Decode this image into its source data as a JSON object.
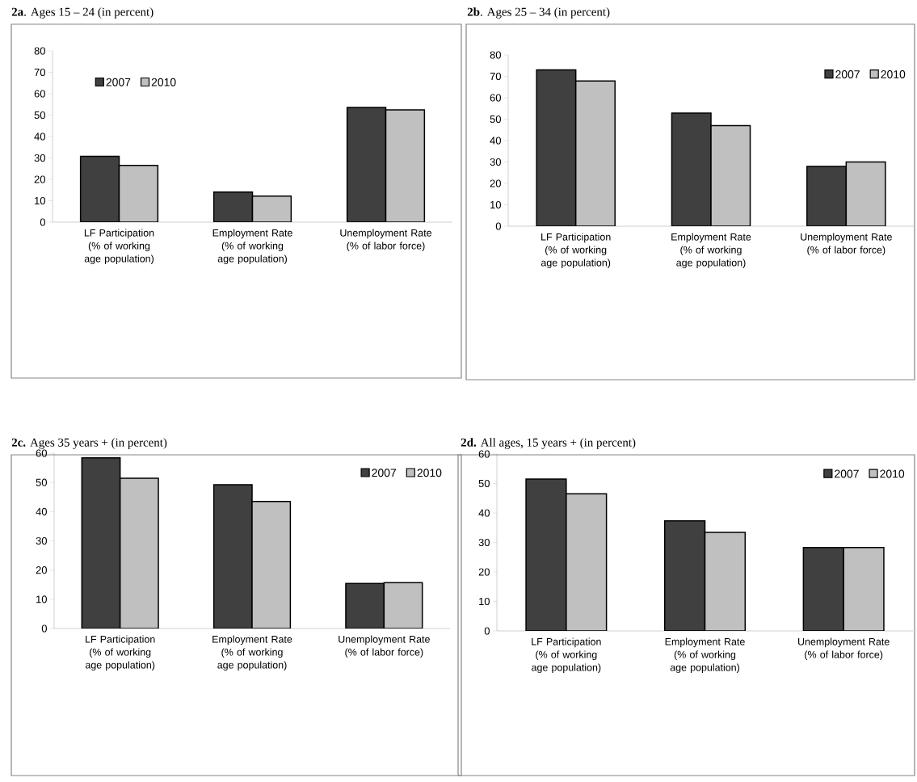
{
  "chart_data": [
    {
      "type": "bar",
      "title": "**2a**. Ages 15 – 24 (in percent)",
      "categories": [
        "LF Participation (% of working age population)",
        "Employment Rate (% of working age population)",
        "Unemployment Rate (% of labor force)"
      ],
      "series": [
        {
          "name": "2007",
          "color": "#404040",
          "values": [
            30.8,
            14.1,
            53.6
          ]
        },
        {
          "name": "2010",
          "color": "#c0c0c0",
          "values": [
            26.5,
            12.2,
            52.5
          ]
        }
      ],
      "ylim": [
        0,
        80
      ],
      "yticks": [
        0,
        10,
        20,
        30,
        40,
        50,
        60,
        70,
        80
      ],
      "legend": "top left"
    },
    {
      "type": "bar",
      "title": "**2b**. Ages 25 – 34 (in percent)",
      "categories": [
        "LF Participation (% of working age population)",
        "Employment Rate (% of working age population)",
        "Unemployment Rate (% of labor force)"
      ],
      "series": [
        {
          "name": "2007",
          "color": "#404040",
          "values": [
            73,
            52.8,
            27.9
          ]
        },
        {
          "name": "2010",
          "color": "#c0c0c0",
          "values": [
            67.8,
            47,
            30
          ]
        }
      ],
      "ylim": [
        0,
        80
      ],
      "yticks": [
        0,
        10,
        20,
        30,
        40,
        50,
        60,
        70,
        80
      ],
      "legend": "top right"
    },
    {
      "type": "bar",
      "title": "**2c.** Ages 35 years + (in percent)",
      "categories": [
        "LF Participation (% of working age population)",
        "Employment Rate (% of working age population)",
        "Unemployment Rate (% of labor force)"
      ],
      "series": [
        {
          "name": "2007",
          "color": "#404040",
          "values": [
            58.4,
            49.2,
            15.4
          ]
        },
        {
          "name": "2010",
          "color": "#c0c0c0",
          "values": [
            51.4,
            43.5,
            15.7
          ]
        }
      ],
      "ylim": [
        0,
        60
      ],
      "yticks": [
        0,
        10,
        20,
        30,
        40,
        50,
        60
      ],
      "legend": "top right"
    },
    {
      "type": "bar",
      "title": "**2d.** All ages, 15 years + (in percent)",
      "categories": [
        "LF Participation (% of working age population)",
        "Employment Rate (% of working age population)",
        "Unemployment Rate (% of labor force)"
      ],
      "series": [
        {
          "name": "2007",
          "color": "#404040",
          "values": [
            51.5,
            37.3,
            28.3
          ]
        },
        {
          "name": "2010",
          "color": "#c0c0c0",
          "values": [
            46.5,
            33.4,
            28.3
          ]
        }
      ],
      "ylim": [
        0,
        60
      ],
      "yticks": [
        0,
        10,
        20,
        30,
        40,
        50,
        60
      ],
      "legend": "top right"
    }
  ]
}
